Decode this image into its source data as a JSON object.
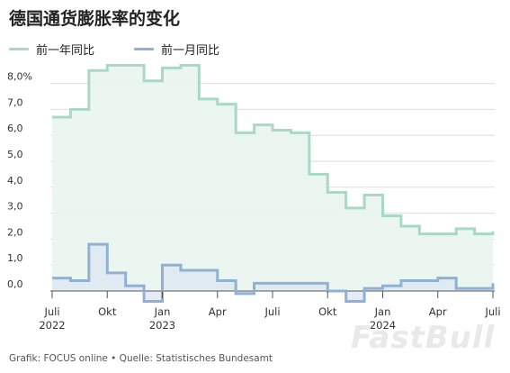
{
  "title": "德国通货膨胀率的变化",
  "legend": [
    {
      "label": "前一年同比",
      "color": "#a9d8c4"
    },
    {
      "label": "前一月同比",
      "color": "#8fb1d3"
    }
  ],
  "chart_data": {
    "type": "line",
    "step": true,
    "ylim": [
      0,
      9
    ],
    "y_ticks": [
      {
        "value": 0,
        "label": "0,0"
      },
      {
        "value": 1,
        "label": "1,0"
      },
      {
        "value": 2,
        "label": "2,0"
      },
      {
        "value": 3,
        "label": "3,0"
      },
      {
        "value": 4,
        "label": "4,0"
      },
      {
        "value": 5,
        "label": "5,0"
      },
      {
        "value": 6,
        "label": "6,0"
      },
      {
        "value": 7,
        "label": "7,0"
      },
      {
        "value": 8,
        "label": "8,0%"
      }
    ],
    "x": [
      "2022-07",
      "2022-08",
      "2022-09",
      "2022-10",
      "2022-11",
      "2022-12",
      "2023-01",
      "2023-02",
      "2023-03",
      "2023-04",
      "2023-05",
      "2023-06",
      "2023-07",
      "2023-08",
      "2023-09",
      "2023-10",
      "2023-11",
      "2023-12",
      "2024-01",
      "2024-02",
      "2024-03",
      "2024-04",
      "2024-05",
      "2024-06",
      "2024-07"
    ],
    "x_ticks": [
      {
        "month": "2022-07",
        "label": "Juli",
        "year": "2022"
      },
      {
        "month": "2022-10",
        "label": "Okt",
        "year": ""
      },
      {
        "month": "2023-01",
        "label": "Jan",
        "year": "2023"
      },
      {
        "month": "2023-04",
        "label": "Apr",
        "year": ""
      },
      {
        "month": "2023-07",
        "label": "Juli",
        "year": ""
      },
      {
        "month": "2023-10",
        "label": "Okt",
        "year": ""
      },
      {
        "month": "2024-01",
        "label": "Jan",
        "year": "2024"
      },
      {
        "month": "2024-04",
        "label": "Apr",
        "year": ""
      },
      {
        "month": "2024-07",
        "label": "Juli",
        "year": ""
      }
    ],
    "series": [
      {
        "name": "前一年同比",
        "color": "#a9d8c4",
        "fill": "#e9f5ef",
        "values": [
          6.7,
          7.0,
          8.5,
          8.7,
          8.7,
          8.1,
          8.6,
          8.7,
          7.4,
          7.2,
          6.1,
          6.4,
          6.2,
          6.1,
          4.5,
          3.8,
          3.2,
          3.7,
          2.9,
          2.5,
          2.2,
          2.2,
          2.4,
          2.2,
          2.3
        ]
      },
      {
        "name": "前一月同比",
        "color": "#8fb1d3",
        "fill": "#dce6f3",
        "values": [
          0.5,
          0.4,
          1.8,
          0.7,
          0.2,
          -0.4,
          1.0,
          0.8,
          0.8,
          0.4,
          -0.1,
          0.3,
          0.3,
          0.3,
          0.3,
          0.0,
          -0.4,
          0.1,
          0.2,
          0.4,
          0.4,
          0.5,
          0.1,
          0.1,
          0.3
        ]
      }
    ]
  },
  "source": "Grafik: FOCUS online • Quelle: Statistisches Bundesamt",
  "watermark": "FastBull"
}
